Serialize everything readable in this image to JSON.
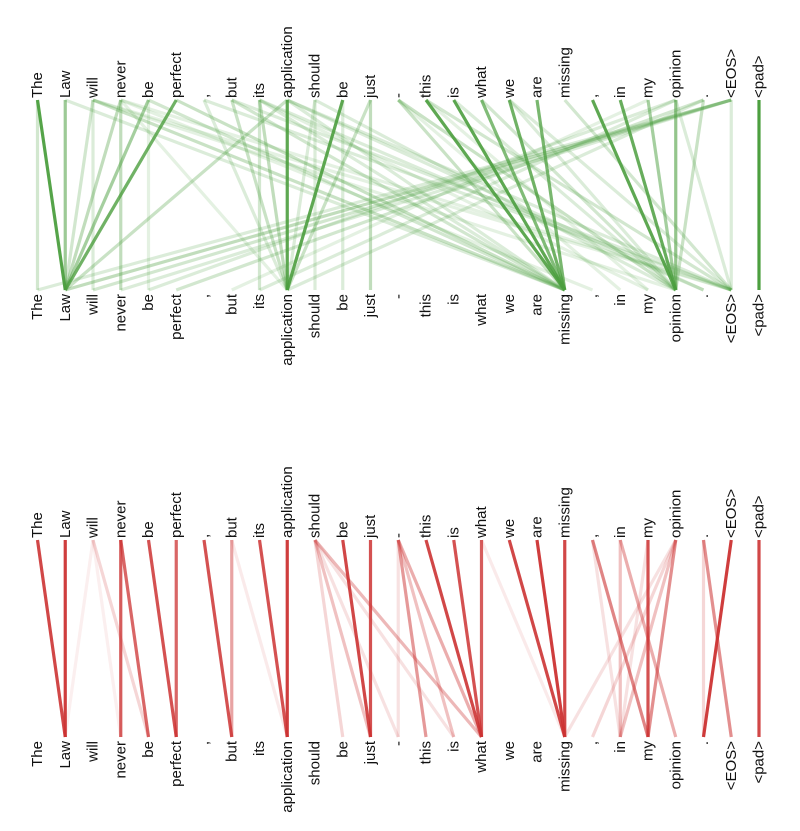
{
  "tokens": [
    "The",
    "Law",
    "will",
    "never",
    "be",
    "perfect",
    ",",
    "but",
    "its",
    "application",
    "should",
    "be",
    "just",
    "-",
    "this",
    "is",
    "what",
    "we",
    "are",
    "missing",
    ",",
    "in",
    "my",
    "opinion",
    ".",
    "<EOS>",
    "<pad>"
  ],
  "colors": {
    "top_panel": "#4c9f3f",
    "bottom_panel": "#cc3333"
  },
  "panels": [
    {
      "id": "top-attention",
      "color_key": "top_panel",
      "edges": [
        [
          0,
          1,
          0.95
        ],
        [
          1,
          1,
          0.55
        ],
        [
          2,
          1,
          0.25
        ],
        [
          3,
          1,
          0.35
        ],
        [
          4,
          1,
          0.5
        ],
        [
          5,
          1,
          0.8
        ],
        [
          9,
          1,
          0.3
        ],
        [
          25,
          1,
          0.35
        ],
        [
          0,
          0,
          0.25
        ],
        [
          2,
          2,
          0.2
        ],
        [
          3,
          3,
          0.35
        ],
        [
          4,
          4,
          0.15
        ],
        [
          8,
          8,
          0.25
        ],
        [
          10,
          10,
          0.2
        ],
        [
          11,
          11,
          0.2
        ],
        [
          12,
          12,
          0.35
        ],
        [
          9,
          9,
          0.9
        ],
        [
          8,
          9,
          0.35
        ],
        [
          7,
          9,
          0.3
        ],
        [
          11,
          9,
          0.9
        ],
        [
          12,
          9,
          0.3
        ],
        [
          10,
          9,
          0.2
        ],
        [
          6,
          9,
          0.2
        ],
        [
          3,
          9,
          0.15
        ],
        [
          14,
          19,
          0.9
        ],
        [
          15,
          19,
          0.9
        ],
        [
          16,
          19,
          0.7
        ],
        [
          17,
          19,
          0.8
        ],
        [
          18,
          19,
          0.75
        ],
        [
          13,
          19,
          0.3
        ],
        [
          2,
          19,
          0.3
        ],
        [
          4,
          19,
          0.25
        ],
        [
          5,
          19,
          0.3
        ],
        [
          7,
          19,
          0.25
        ],
        [
          9,
          19,
          0.2
        ],
        [
          1,
          19,
          0.2
        ],
        [
          8,
          19,
          0.2
        ],
        [
          20,
          23,
          0.9
        ],
        [
          21,
          23,
          0.85
        ],
        [
          22,
          23,
          0.5
        ],
        [
          23,
          23,
          0.6
        ],
        [
          24,
          23,
          0.3
        ],
        [
          13,
          23,
          0.3
        ],
        [
          16,
          23,
          0.25
        ],
        [
          17,
          23,
          0.2
        ],
        [
          15,
          23,
          0.2
        ],
        [
          25,
          25,
          0.2
        ],
        [
          23,
          25,
          0.2
        ],
        [
          19,
          25,
          0.25
        ],
        [
          14,
          25,
          0.25
        ],
        [
          17,
          25,
          0.2
        ],
        [
          6,
          25,
          0.2
        ],
        [
          7,
          25,
          0.2
        ],
        [
          3,
          25,
          0.15
        ],
        [
          9,
          25,
          0.2
        ],
        [
          2,
          25,
          0.15
        ],
        [
          25,
          2,
          0.25
        ],
        [
          24,
          5,
          0.25
        ],
        [
          23,
          4,
          0.2
        ],
        [
          25,
          0,
          0.2
        ],
        [
          24,
          9,
          0.2
        ],
        [
          23,
          8,
          0.2
        ],
        [
          22,
          7,
          0.15
        ],
        [
          25,
          3,
          0.2
        ],
        [
          8,
          24,
          0.2
        ],
        [
          9,
          24,
          0.2
        ],
        [
          10,
          23,
          0.2
        ],
        [
          8,
          22,
          0.15
        ],
        [
          2,
          23,
          0.15
        ],
        [
          3,
          20,
          0.15
        ],
        [
          13,
          21,
          0.15
        ],
        [
          14,
          22,
          0.15
        ],
        [
          26,
          26,
          1.0
        ]
      ]
    },
    {
      "id": "bottom-attention",
      "color_key": "bottom_panel",
      "edges": [
        [
          0,
          1,
          0.9
        ],
        [
          1,
          1,
          0.95
        ],
        [
          2,
          4,
          0.2
        ],
        [
          2,
          3,
          0.08
        ],
        [
          3,
          4,
          0.75
        ],
        [
          4,
          5,
          0.85
        ],
        [
          3,
          3,
          0.8
        ],
        [
          5,
          5,
          0.75
        ],
        [
          2,
          1,
          0.08
        ],
        [
          6,
          7,
          0.85
        ],
        [
          7,
          7,
          0.45
        ],
        [
          8,
          9,
          0.85
        ],
        [
          9,
          9,
          0.95
        ],
        [
          7,
          9,
          0.1
        ],
        [
          10,
          11,
          0.2
        ],
        [
          10,
          12,
          0.3
        ],
        [
          10,
          16,
          0.35
        ],
        [
          10,
          13,
          0.15
        ],
        [
          10,
          15,
          0.15
        ],
        [
          11,
          12,
          0.9
        ],
        [
          12,
          12,
          0.85
        ],
        [
          13,
          14,
          0.5
        ],
        [
          13,
          15,
          0.3
        ],
        [
          13,
          16,
          0.4
        ],
        [
          14,
          16,
          0.9
        ],
        [
          15,
          16,
          0.85
        ],
        [
          16,
          16,
          0.8
        ],
        [
          13,
          13,
          0.15
        ],
        [
          17,
          19,
          0.9
        ],
        [
          18,
          19,
          0.95
        ],
        [
          19,
          19,
          0.9
        ],
        [
          16,
          19,
          0.1
        ],
        [
          20,
          22,
          0.6
        ],
        [
          20,
          21,
          0.15
        ],
        [
          21,
          21,
          0.3
        ],
        [
          22,
          21,
          0.15
        ],
        [
          22,
          22,
          0.85
        ],
        [
          23,
          22,
          0.55
        ],
        [
          23,
          21,
          0.3
        ],
        [
          23,
          20,
          0.2
        ],
        [
          23,
          19,
          0.15
        ],
        [
          21,
          23,
          0.4
        ],
        [
          24,
          25,
          0.55
        ],
        [
          25,
          24,
          0.95
        ],
        [
          24,
          24,
          0.2
        ],
        [
          26,
          26,
          0.9
        ]
      ]
    }
  ]
}
